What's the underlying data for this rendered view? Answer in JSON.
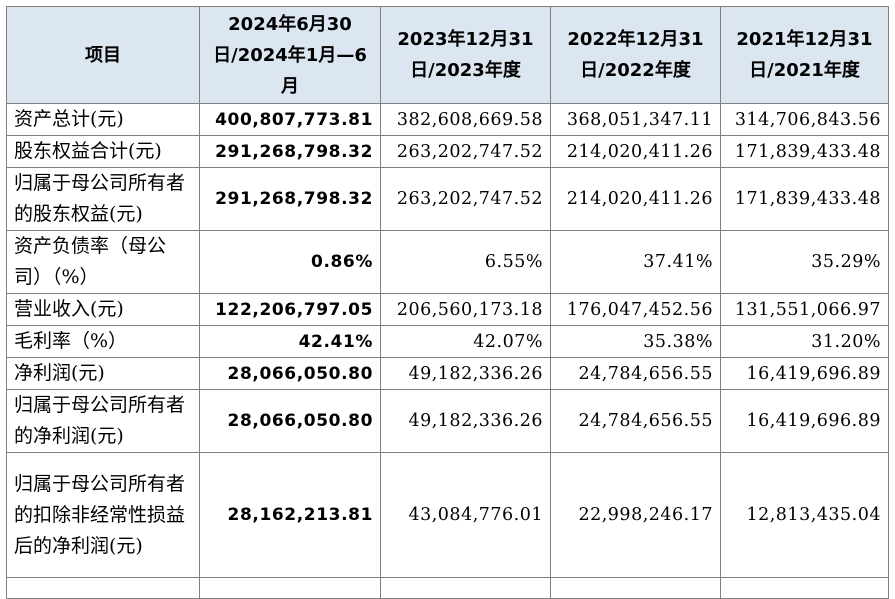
{
  "table": {
    "headers": [
      "项目",
      "2024年6月30日/2024年1月—6月",
      "2023年12月31日/2023年度",
      "2022年12月31日/2022年度",
      "2021年12月31日/2021年度"
    ],
    "rows": [
      {
        "label": "资产总计(元)",
        "values": [
          "400,807,773.81",
          "382,608,669.58",
          "368,051,347.11",
          "314,706,843.56"
        ]
      },
      {
        "label": "股东权益合计(元)",
        "values": [
          "291,268,798.32",
          "263,202,747.52",
          "214,020,411.26",
          "171,839,433.48"
        ]
      },
      {
        "label": "归属于母公司所有者的股东权益(元)",
        "values": [
          "291,268,798.32",
          "263,202,747.52",
          "214,020,411.26",
          "171,839,433.48"
        ]
      },
      {
        "label": "资产负债率（母公司）（%）",
        "values": [
          "0.86%",
          "6.55%",
          "37.41%",
          "35.29%"
        ]
      },
      {
        "label": "营业收入(元)",
        "values": [
          "122,206,797.05",
          "206,560,173.18",
          "176,047,452.56",
          "131,551,066.97"
        ]
      },
      {
        "label": "毛利率（%）",
        "values": [
          "42.41%",
          "42.07%",
          "35.38%",
          "31.20%"
        ]
      },
      {
        "label": "净利润(元)",
        "values": [
          "28,066,050.80",
          "49,182,336.26",
          "24,784,656.55",
          "16,419,696.89"
        ]
      },
      {
        "label": "归属于母公司所有者的净利润(元)",
        "values": [
          "28,066,050.80",
          "49,182,336.26",
          "24,784,656.55",
          "16,419,696.89"
        ]
      },
      {
        "label": "归属于母公司所有者的扣除非经常性损益后的净利润(元)",
        "values": [
          "28,162,213.81",
          "43,084,776.01",
          "22,998,246.17",
          "12,813,435.04"
        ]
      }
    ]
  },
  "colors": {
    "header_bg": "#dce6f1",
    "border": "#808080",
    "text": "#000000"
  }
}
